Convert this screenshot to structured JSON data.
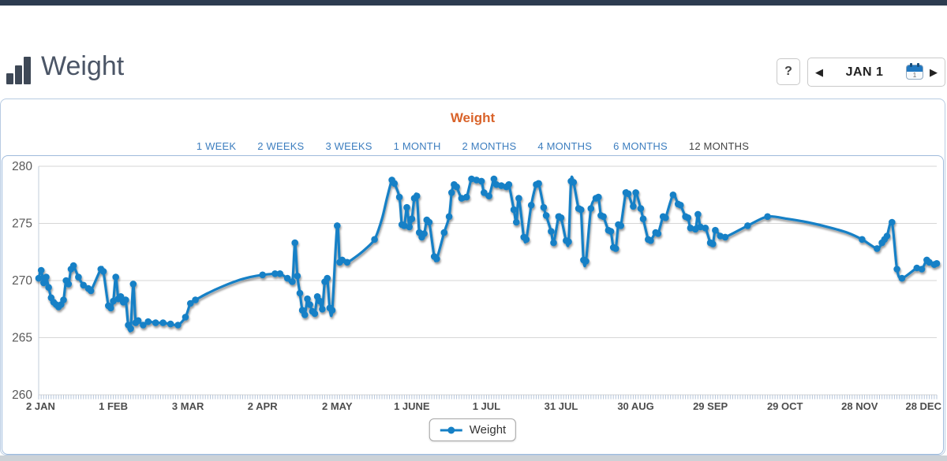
{
  "header": {
    "title": "Weight",
    "help_label": "?",
    "date_nav": {
      "prev": "◀",
      "next": "▶",
      "date_label": "JAN 1",
      "calendar_day": "1"
    }
  },
  "chart": {
    "title": "Weight",
    "ranges": [
      {
        "label": "1 WEEK",
        "active": false
      },
      {
        "label": "2 WEEKS",
        "active": false
      },
      {
        "label": "3 WEEKS",
        "active": false
      },
      {
        "label": "1 MONTH",
        "active": false
      },
      {
        "label": "2 MONTHS",
        "active": false
      },
      {
        "label": "4 MONTHS",
        "active": false
      },
      {
        "label": "6 MONTHS",
        "active": false
      },
      {
        "label": "12 MONTHS",
        "active": true
      }
    ]
  },
  "chart_data": {
    "type": "line",
    "title": "Weight",
    "legend_label": "Weight",
    "line_color": "#1580c6",
    "grid_color": "#d6d6d6",
    "tick_color": "#b5c5da",
    "axis_line_color": "#c0ccd9",
    "y_axis": {
      "min": 260,
      "max": 280,
      "ticks": [
        260,
        265,
        270,
        275,
        280
      ]
    },
    "x_axis": {
      "days_total": 361,
      "ticks": [
        {
          "day": 0,
          "label": "2 JAN"
        },
        {
          "day": 30,
          "label": "1 FEB"
        },
        {
          "day": 60,
          "label": "3 MAR"
        },
        {
          "day": 90,
          "label": "2 APR"
        },
        {
          "day": 120,
          "label": "2 MAY"
        },
        {
          "day": 150,
          "label": "1 JUNE"
        },
        {
          "day": 180,
          "label": "1 JUL"
        },
        {
          "day": 210,
          "label": "31 JUL"
        },
        {
          "day": 240,
          "label": "30 AUG"
        },
        {
          "day": 270,
          "label": "29 SEP"
        },
        {
          "day": 300,
          "label": "29 OCT"
        },
        {
          "day": 330,
          "label": "28 NOV"
        },
        {
          "day": 360,
          "label": "28 DEC"
        }
      ]
    },
    "series": [
      {
        "name": "Weight",
        "points": [
          [
            0,
            270.2
          ],
          [
            1,
            270.9
          ],
          [
            2,
            269.8
          ],
          [
            3,
            270.3
          ],
          [
            4,
            269.4
          ],
          [
            5,
            268.5
          ],
          [
            6,
            268.1
          ],
          [
            7,
            267.9
          ],
          [
            8,
            267.7
          ],
          [
            9,
            267.9
          ],
          [
            10,
            268.3
          ],
          [
            11,
            270.0
          ],
          [
            12,
            269.7
          ],
          [
            13,
            271.0
          ],
          [
            14,
            271.3
          ],
          [
            16,
            270.3
          ],
          [
            18,
            269.6
          ],
          [
            20,
            269.3
          ],
          [
            21,
            269.1
          ],
          [
            25,
            271.0
          ],
          [
            26,
            270.8
          ],
          [
            28,
            267.8
          ],
          [
            29,
            267.6
          ],
          [
            30,
            268.2
          ],
          [
            31,
            270.3
          ],
          [
            32,
            268.4
          ],
          [
            33,
            268.6
          ],
          [
            34,
            268.1
          ],
          [
            35,
            268.3
          ],
          [
            36,
            266.1
          ],
          [
            37,
            265.8
          ],
          [
            38,
            269.7
          ],
          [
            39,
            266.3
          ],
          [
            40,
            266.5
          ],
          [
            42,
            266.1
          ],
          [
            44,
            266.4
          ],
          [
            47,
            266.3
          ],
          [
            50,
            266.3
          ],
          [
            53,
            266.2
          ],
          [
            56,
            266.1
          ],
          [
            59,
            266.8
          ],
          [
            61,
            268.0
          ],
          [
            63,
            268.3
          ],
          [
            68,
            268.9,
            0
          ],
          [
            74,
            269.5,
            0
          ],
          [
            80,
            270.0,
            0
          ],
          [
            85,
            270.3,
            0
          ],
          [
            90,
            270.5
          ],
          [
            95,
            270.6
          ],
          [
            97,
            270.6
          ],
          [
            100,
            270.2
          ],
          [
            102,
            269.9
          ],
          [
            103,
            273.3
          ],
          [
            104,
            270.4
          ],
          [
            105,
            268.9
          ],
          [
            106,
            267.4
          ],
          [
            107,
            267.0
          ],
          [
            108,
            268.4
          ],
          [
            109,
            267.9
          ],
          [
            110,
            267.3
          ],
          [
            111,
            267.1
          ],
          [
            112,
            268.6
          ],
          [
            113,
            268.2
          ],
          [
            114,
            267.5
          ],
          [
            115,
            269.9
          ],
          [
            116,
            270.2
          ],
          [
            117,
            267.6
          ],
          [
            118,
            267.4
          ],
          [
            120,
            274.8
          ],
          [
            121,
            271.6
          ],
          [
            122,
            271.8
          ],
          [
            124,
            271.6
          ],
          [
            127,
            272.0,
            0
          ],
          [
            131,
            272.7,
            0
          ],
          [
            135,
            273.6
          ],
          [
            138,
            275.4,
            0
          ],
          [
            140,
            277.2,
            0
          ],
          [
            142,
            278.8
          ],
          [
            143,
            278.5
          ],
          [
            145,
            277.3
          ],
          [
            146,
            274.9
          ],
          [
            147,
            274.8
          ],
          [
            148,
            276.4
          ],
          [
            149,
            274.7
          ],
          [
            150,
            275.4
          ],
          [
            151,
            277.2
          ],
          [
            152,
            277.4
          ],
          [
            153,
            274.2
          ],
          [
            154,
            273.8
          ],
          [
            155,
            274.1
          ],
          [
            156,
            275.3
          ],
          [
            157,
            275.1
          ],
          [
            159,
            272.1
          ],
          [
            160,
            271.9
          ],
          [
            163,
            274.2
          ],
          [
            165,
            275.6
          ],
          [
            166,
            277.7
          ],
          [
            167,
            278.4
          ],
          [
            168,
            278.2
          ],
          [
            170,
            277.2
          ],
          [
            172,
            277.3
          ],
          [
            174,
            278.9
          ],
          [
            176,
            278.8
          ],
          [
            178,
            278.7
          ],
          [
            179,
            277.7
          ],
          [
            181,
            277.4
          ],
          [
            183,
            278.9
          ],
          [
            184,
            278.4
          ],
          [
            186,
            278.3
          ],
          [
            188,
            278.2
          ],
          [
            189,
            278.4
          ],
          [
            191,
            276.2
          ],
          [
            192,
            275.1
          ],
          [
            193,
            277.2
          ],
          [
            195,
            273.8
          ],
          [
            196,
            273.6
          ],
          [
            198,
            276.6
          ],
          [
            200,
            278.4
          ],
          [
            201,
            278.5
          ],
          [
            203,
            276.4
          ],
          [
            204,
            275.7
          ],
          [
            206,
            274.3
          ],
          [
            207,
            273.3
          ],
          [
            209,
            275.6
          ],
          [
            210,
            275.5
          ],
          [
            212,
            273.5
          ],
          [
            213,
            273.4
          ],
          [
            214,
            278.7
          ],
          [
            215,
            278.6
          ],
          [
            217,
            276.3
          ],
          [
            218,
            276.2
          ],
          [
            219,
            271.8
          ],
          [
            220,
            271.7
          ],
          [
            222,
            276.3
          ],
          [
            224,
            277.2
          ],
          [
            225,
            277.3
          ],
          [
            226,
            275.7
          ],
          [
            227,
            275.6
          ],
          [
            229,
            274.4
          ],
          [
            230,
            274.3
          ],
          [
            231,
            272.9
          ],
          [
            232,
            272.8
          ],
          [
            233,
            274.9
          ],
          [
            234,
            274.8
          ],
          [
            236,
            277.7
          ],
          [
            237,
            277.6
          ],
          [
            239,
            276.5
          ],
          [
            240,
            277.7
          ],
          [
            242,
            276.3
          ],
          [
            243,
            275.4
          ],
          [
            245,
            273.6
          ],
          [
            246,
            273.5
          ],
          [
            248,
            274.2
          ],
          [
            249,
            274.1
          ],
          [
            251,
            275.6
          ],
          [
            252,
            275.5
          ],
          [
            255,
            277.5
          ],
          [
            257,
            276.7
          ],
          [
            258,
            276.6
          ],
          [
            260,
            275.6
          ],
          [
            261,
            275.5
          ],
          [
            262,
            274.6
          ],
          [
            264,
            274.5
          ],
          [
            265,
            275.8
          ],
          [
            266,
            274.7
          ],
          [
            268,
            274.6
          ],
          [
            270,
            273.3
          ],
          [
            271,
            273.2
          ],
          [
            272,
            274.4
          ],
          [
            274,
            273.9
          ],
          [
            276,
            273.8
          ],
          [
            285,
            274.8
          ],
          [
            293,
            275.6
          ],
          [
            301,
            275.4,
            0
          ],
          [
            309,
            275.1,
            0
          ],
          [
            317,
            274.7,
            0
          ],
          [
            325,
            274.2,
            0
          ],
          [
            331,
            273.6
          ],
          [
            337,
            272.8
          ],
          [
            339,
            273.3
          ],
          [
            340,
            273.6
          ],
          [
            341,
            273.9
          ],
          [
            343,
            275.1
          ],
          [
            345,
            271.0
          ],
          [
            347,
            270.2
          ],
          [
            353,
            271.1
          ],
          [
            355,
            271.0
          ],
          [
            357,
            271.8
          ],
          [
            358,
            271.6
          ],
          [
            360,
            271.4
          ],
          [
            361,
            271.5
          ]
        ]
      }
    ]
  }
}
